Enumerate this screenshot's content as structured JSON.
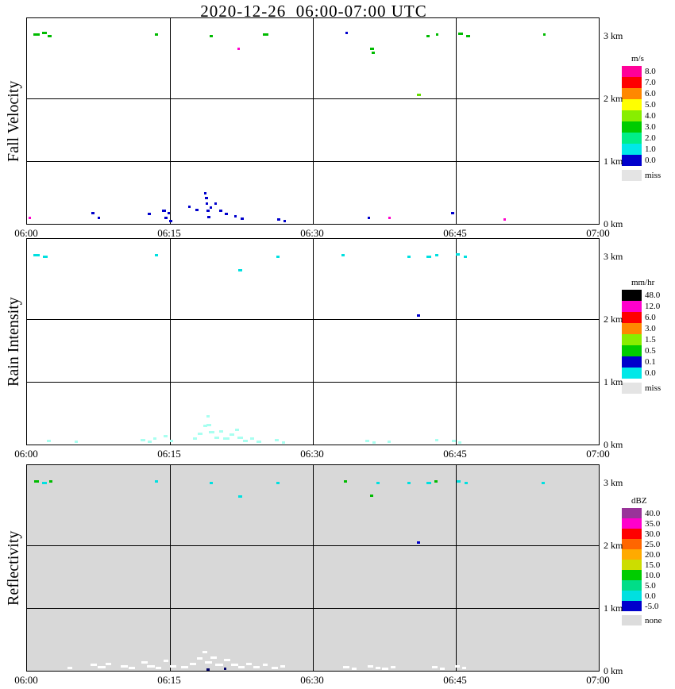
{
  "title": "2020-12-26  06:00-07:00 UTC",
  "palette": {
    "G": "#00BB00",
    "g": "#66DD00",
    "B": "#0000CC",
    "M": "#FF00CC",
    "C": "#00E0E0",
    "c": "#A8FFF0",
    "W": "#FFFFFF",
    "N": "#000066"
  },
  "points_format": [
    "time_minutes_after_0600",
    "height_km",
    "palette_key",
    "dash_width_px"
  ],
  "chart_data": [
    {
      "id": "fall-velocity",
      "type": "scatter",
      "title": "Fall Velocity",
      "unit": "m/s",
      "time_start": "06:00",
      "time_end": "07:00",
      "x_tick_labels": [
        "06:00",
        "06:15",
        "06:30",
        "06:45",
        "07:00"
      ],
      "y_tick_labels": [
        "0 km",
        "1 km",
        "2 km",
        "3 km"
      ],
      "height_km_range": [
        0,
        3.28
      ],
      "grid": true,
      "plot_background": "#FFFFFF",
      "legend": [
        {
          "label": "8.0",
          "color": "#FF0099"
        },
        {
          "label": "7.0",
          "color": "#FF0000"
        },
        {
          "label": "6.0",
          "color": "#FF8800"
        },
        {
          "label": "5.0",
          "color": "#FFFF00"
        },
        {
          "label": "4.0",
          "color": "#88EE00"
        },
        {
          "label": "3.0",
          "color": "#00CC00"
        },
        {
          "label": "2.0",
          "color": "#00EE88"
        },
        {
          "label": "1.0",
          "color": "#00E8E8"
        },
        {
          "label": "0.0",
          "color": "#0000CC"
        }
      ],
      "missing": {
        "label": "miss",
        "color": "#E4E4E4"
      },
      "points": [
        [
          1.0,
          3.02,
          "G",
          8
        ],
        [
          1.8,
          3.05,
          "G",
          6
        ],
        [
          2.4,
          3.0,
          "G",
          5
        ],
        [
          13.6,
          3.02,
          "G",
          4
        ],
        [
          19.3,
          3.0,
          "G",
          4
        ],
        [
          25.0,
          3.03,
          "G",
          7
        ],
        [
          33.5,
          3.05,
          "B",
          3
        ],
        [
          42.1,
          3.0,
          "G",
          4
        ],
        [
          43.0,
          3.02,
          "G",
          3
        ],
        [
          45.5,
          3.04,
          "G",
          6
        ],
        [
          46.3,
          3.0,
          "G",
          5
        ],
        [
          54.3,
          3.02,
          "G",
          3
        ],
        [
          22.2,
          2.8,
          "M",
          3
        ],
        [
          36.2,
          2.8,
          "G",
          5
        ],
        [
          36.3,
          2.74,
          "G",
          4
        ],
        [
          41.1,
          2.06,
          "g",
          5
        ],
        [
          0.3,
          0.1,
          "M",
          3
        ],
        [
          6.9,
          0.18,
          "B",
          4
        ],
        [
          7.5,
          0.1,
          "B",
          3
        ],
        [
          12.8,
          0.16,
          "B",
          4
        ],
        [
          14.4,
          0.22,
          "B",
          5
        ],
        [
          14.6,
          0.1,
          "B",
          4
        ],
        [
          14.9,
          0.18,
          "B",
          3
        ],
        [
          15.1,
          0.05,
          "B",
          4
        ],
        [
          17.0,
          0.28,
          "B",
          3
        ],
        [
          17.8,
          0.23,
          "B",
          4
        ],
        [
          18.7,
          0.5,
          "B",
          3
        ],
        [
          18.8,
          0.42,
          "B",
          4
        ],
        [
          18.9,
          0.33,
          "B",
          3
        ],
        [
          19.0,
          0.22,
          "B",
          4
        ],
        [
          19.1,
          0.12,
          "B",
          4
        ],
        [
          19.3,
          0.27,
          "B",
          3
        ],
        [
          19.8,
          0.33,
          "B",
          3
        ],
        [
          20.3,
          0.22,
          "B",
          4
        ],
        [
          20.9,
          0.16,
          "B",
          4
        ],
        [
          21.9,
          0.13,
          "B",
          3
        ],
        [
          22.6,
          0.09,
          "B",
          4
        ],
        [
          26.4,
          0.08,
          "B",
          4
        ],
        [
          27.0,
          0.05,
          "B",
          3
        ],
        [
          35.9,
          0.1,
          "B",
          3
        ],
        [
          38.0,
          0.1,
          "M",
          3
        ],
        [
          44.7,
          0.18,
          "B",
          4
        ],
        [
          50.1,
          0.08,
          "M",
          3
        ]
      ]
    },
    {
      "id": "rain-intensity",
      "type": "scatter",
      "title": "Rain Intensity",
      "unit": "mm/hr",
      "time_start": "06:00",
      "time_end": "07:00",
      "x_tick_labels": [
        "06:00",
        "06:15",
        "06:30",
        "06:45",
        "07:00"
      ],
      "y_tick_labels": [
        "0 km",
        "1 km",
        "2 km",
        "3 km"
      ],
      "height_km_range": [
        0,
        3.28
      ],
      "grid": true,
      "plot_background": "#FFFFFF",
      "legend": [
        {
          "label": "48.0",
          "color": "#000000"
        },
        {
          "label": "12.0",
          "color": "#FF00CC"
        },
        {
          "label": "6.0",
          "color": "#FF0000"
        },
        {
          "label": "3.0",
          "color": "#FF8800"
        },
        {
          "label": "1.5",
          "color": "#88EE00"
        },
        {
          "label": "0.5",
          "color": "#00CC00"
        },
        {
          "label": "0.1",
          "color": "#0000CC"
        },
        {
          "label": "0.0",
          "color": "#00E8E8"
        }
      ],
      "missing": {
        "label": "miss",
        "color": "#E4E4E4"
      },
      "points": [
        [
          1.0,
          3.02,
          "C",
          8
        ],
        [
          1.9,
          3.0,
          "C",
          6
        ],
        [
          13.6,
          3.02,
          "C",
          4
        ],
        [
          26.3,
          3.0,
          "C",
          4
        ],
        [
          33.2,
          3.02,
          "C",
          4
        ],
        [
          40.1,
          3.0,
          "C",
          4
        ],
        [
          42.2,
          3.0,
          "C",
          6
        ],
        [
          43.0,
          3.02,
          "C",
          4
        ],
        [
          45.2,
          3.04,
          "C",
          5
        ],
        [
          46.0,
          3.0,
          "C",
          4
        ],
        [
          22.4,
          2.79,
          "C",
          5
        ],
        [
          41.1,
          2.06,
          "B",
          4
        ],
        [
          2.3,
          0.06,
          "c",
          5
        ],
        [
          5.2,
          0.05,
          "c",
          4
        ],
        [
          12.2,
          0.08,
          "c",
          6
        ],
        [
          12.9,
          0.05,
          "c",
          5
        ],
        [
          13.4,
          0.1,
          "c",
          4
        ],
        [
          14.5,
          0.14,
          "c",
          5
        ],
        [
          15.2,
          0.06,
          "c",
          4
        ],
        [
          17.6,
          0.1,
          "c",
          5
        ],
        [
          18.2,
          0.18,
          "c",
          6
        ],
        [
          18.7,
          0.3,
          "c",
          5
        ],
        [
          19.0,
          0.45,
          "c",
          4
        ],
        [
          19.1,
          0.32,
          "c",
          6
        ],
        [
          19.4,
          0.2,
          "c",
          7
        ],
        [
          19.9,
          0.12,
          "c",
          6
        ],
        [
          20.4,
          0.22,
          "c",
          5
        ],
        [
          20.9,
          0.1,
          "c",
          8
        ],
        [
          21.5,
          0.16,
          "c",
          6
        ],
        [
          22.0,
          0.24,
          "c",
          5
        ],
        [
          22.4,
          0.12,
          "c",
          7
        ],
        [
          22.9,
          0.06,
          "c",
          6
        ],
        [
          23.6,
          0.1,
          "c",
          5
        ],
        [
          24.3,
          0.05,
          "c",
          6
        ],
        [
          26.2,
          0.08,
          "c",
          5
        ],
        [
          26.9,
          0.04,
          "c",
          4
        ],
        [
          35.7,
          0.06,
          "c",
          5
        ],
        [
          36.4,
          0.04,
          "c",
          4
        ],
        [
          38.0,
          0.05,
          "c",
          4
        ],
        [
          43.0,
          0.08,
          "c",
          4
        ],
        [
          44.8,
          0.06,
          "c",
          5
        ],
        [
          45.4,
          0.04,
          "c",
          4
        ]
      ]
    },
    {
      "id": "reflectivity",
      "type": "scatter",
      "title": "Reflectivity",
      "unit": "dBZ",
      "time_start": "06:00",
      "time_end": "07:00",
      "x_tick_labels": [
        "06:00",
        "06:15",
        "06:30",
        "06:45",
        "07:00"
      ],
      "y_tick_labels": [
        "0 km",
        "1 km",
        "2 km",
        "3 km"
      ],
      "height_km_range": [
        0,
        3.28
      ],
      "grid": true,
      "plot_background": "#D8D8D8",
      "legend": [
        {
          "label": "40.0",
          "color": "#993399"
        },
        {
          "label": "35.0",
          "color": "#FF00CC"
        },
        {
          "label": "30.0",
          "color": "#FF0000"
        },
        {
          "label": "25.0",
          "color": "#FF6600"
        },
        {
          "label": "20.0",
          "color": "#FFAA00"
        },
        {
          "label": "15.0",
          "color": "#CCDD00"
        },
        {
          "label": "10.0",
          "color": "#00CC00"
        },
        {
          "label": "5.0",
          "color": "#00DD88"
        },
        {
          "label": "0.0",
          "color": "#00E0E0"
        },
        {
          "label": "-5.0",
          "color": "#0000CC"
        }
      ],
      "missing": {
        "label": "none",
        "color": "#DCDCDC"
      },
      "points": [
        [
          1.0,
          3.02,
          "G",
          6
        ],
        [
          1.8,
          3.0,
          "C",
          6
        ],
        [
          2.5,
          3.03,
          "G",
          4
        ],
        [
          13.6,
          3.02,
          "C",
          4
        ],
        [
          19.3,
          3.0,
          "C",
          4
        ],
        [
          26.3,
          3.0,
          "C",
          4
        ],
        [
          33.4,
          3.03,
          "G",
          4
        ],
        [
          36.8,
          3.0,
          "C",
          4
        ],
        [
          40.1,
          3.0,
          "C",
          4
        ],
        [
          42.2,
          3.0,
          "C",
          6
        ],
        [
          42.9,
          3.02,
          "G",
          4
        ],
        [
          45.3,
          3.03,
          "C",
          5
        ],
        [
          46.1,
          3.0,
          "C",
          4
        ],
        [
          54.2,
          3.0,
          "C",
          4
        ],
        [
          22.4,
          2.78,
          "C",
          5
        ],
        [
          36.2,
          2.8,
          "G",
          4
        ],
        [
          41.1,
          2.05,
          "B",
          4
        ],
        [
          4.5,
          0.05,
          "W",
          6
        ],
        [
          7.0,
          0.1,
          "W",
          8
        ],
        [
          7.8,
          0.06,
          "W",
          10
        ],
        [
          8.5,
          0.12,
          "W",
          7
        ],
        [
          10.2,
          0.08,
          "W",
          9
        ],
        [
          11.0,
          0.05,
          "W",
          8
        ],
        [
          12.3,
          0.14,
          "W",
          8
        ],
        [
          13.0,
          0.08,
          "W",
          10
        ],
        [
          13.8,
          0.05,
          "W",
          7
        ],
        [
          14.6,
          0.16,
          "W",
          6
        ],
        [
          15.3,
          0.08,
          "W",
          8
        ],
        [
          16.5,
          0.06,
          "W",
          9
        ],
        [
          17.4,
          0.12,
          "W",
          8
        ],
        [
          18.1,
          0.2,
          "W",
          7
        ],
        [
          18.7,
          0.3,
          "W",
          6
        ],
        [
          19.0,
          0.14,
          "W",
          9
        ],
        [
          19.6,
          0.22,
          "W",
          8
        ],
        [
          20.2,
          0.1,
          "W",
          10
        ],
        [
          21.0,
          0.18,
          "W",
          8
        ],
        [
          21.8,
          0.1,
          "W",
          9
        ],
        [
          22.5,
          0.06,
          "W",
          8
        ],
        [
          23.3,
          0.12,
          "W",
          7
        ],
        [
          24.1,
          0.06,
          "W",
          8
        ],
        [
          25.0,
          0.1,
          "W",
          6
        ],
        [
          26.0,
          0.05,
          "W",
          8
        ],
        [
          26.8,
          0.08,
          "W",
          6
        ],
        [
          19.0,
          0.03,
          "N",
          4
        ],
        [
          20.8,
          0.04,
          "N",
          3
        ],
        [
          33.5,
          0.06,
          "W",
          8
        ],
        [
          34.3,
          0.04,
          "W",
          6
        ],
        [
          36.0,
          0.08,
          "W",
          7
        ],
        [
          36.8,
          0.05,
          "W",
          6
        ],
        [
          37.6,
          0.04,
          "W",
          8
        ],
        [
          38.4,
          0.06,
          "W",
          6
        ],
        [
          42.8,
          0.06,
          "W",
          7
        ],
        [
          43.6,
          0.04,
          "W",
          6
        ],
        [
          45.2,
          0.08,
          "W",
          6
        ],
        [
          45.9,
          0.05,
          "W",
          5
        ]
      ]
    }
  ]
}
